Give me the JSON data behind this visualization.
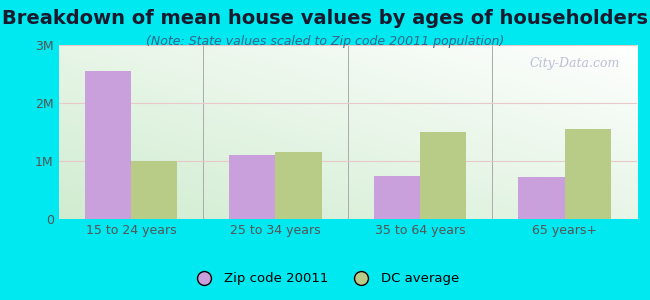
{
  "title": "Breakdown of mean house values by ages of householders",
  "subtitle": "(Note: State values scaled to Zip code 20011 population)",
  "categories": [
    "15 to 24 years",
    "25 to 34 years",
    "35 to 64 years",
    "65 years+"
  ],
  "zip_values": [
    2550000,
    1100000,
    750000,
    720000
  ],
  "dc_values": [
    1000000,
    1150000,
    1500000,
    1560000
  ],
  "zip_color": "#c9a0dc",
  "dc_color": "#b8cc88",
  "background_outer": "#00e8f0",
  "background_inner_top": "#ffffff",
  "background_inner_bottom": "#d0ecd0",
  "ylim": [
    0,
    3000000
  ],
  "yticks": [
    0,
    1000000,
    2000000,
    3000000
  ],
  "ytick_labels": [
    "0",
    "1M",
    "2M",
    "3M"
  ],
  "legend_zip_label": "Zip code 20011",
  "legend_dc_label": "DC average",
  "watermark": "City-Data.com",
  "title_fontsize": 14,
  "subtitle_fontsize": 9,
  "bar_width": 0.32,
  "figsize": [
    6.5,
    3.0
  ],
  "dpi": 100
}
